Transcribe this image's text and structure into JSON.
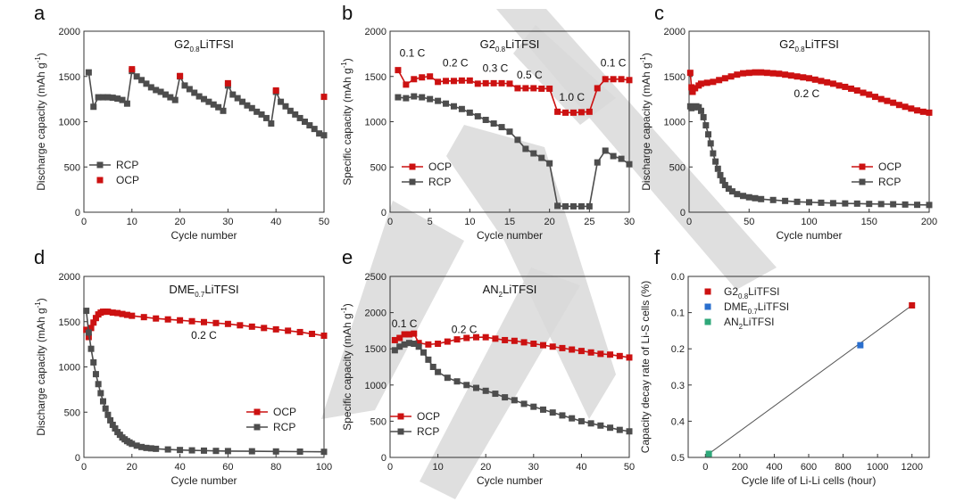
{
  "colors": {
    "red": "#cc1111",
    "gray": "#4d4d4d",
    "blue": "#2a6fce",
    "green": "#2fa87a"
  },
  "chart_data": [
    {
      "id": "a",
      "type": "scatter",
      "panel_label": "a",
      "title": "G2",
      "title_sub": "0.8",
      "title_tail": "LiTFSI",
      "xlabel": "Cycle number",
      "ylabel": "Discharge capacity (mAh g",
      "ylabel_sup": "-1",
      "ylabel_tail": ")",
      "xlim": [
        0,
        50
      ],
      "ylim": [
        0,
        2000
      ],
      "xticks": [
        0,
        10,
        20,
        30,
        40,
        50
      ],
      "yticks": [
        0,
        500,
        1000,
        1500,
        2000
      ],
      "legend": {
        "position": "center-left",
        "entries": [
          {
            "name": "RCP",
            "color": "#4d4d4d",
            "line": true
          },
          {
            "name": "OCP",
            "color": "#cc1111",
            "line": false
          }
        ]
      },
      "series": [
        {
          "name": "RCP",
          "color": "#4d4d4d",
          "line": true,
          "x": [
            1,
            2,
            3,
            4,
            5,
            6,
            7,
            8,
            9,
            10,
            11,
            12,
            13,
            14,
            15,
            16,
            17,
            18,
            19,
            20,
            21,
            22,
            23,
            24,
            25,
            26,
            27,
            28,
            29,
            30,
            31,
            32,
            33,
            34,
            35,
            36,
            37,
            38,
            39,
            40,
            41,
            42,
            43,
            44,
            45,
            46,
            47,
            48,
            49,
            50
          ],
          "y": [
            1545,
            1165,
            1270,
            1270,
            1270,
            1265,
            1255,
            1240,
            1200,
            1560,
            1500,
            1460,
            1420,
            1380,
            1350,
            1330,
            1300,
            1270,
            1240,
            1500,
            1400,
            1360,
            1320,
            1280,
            1250,
            1220,
            1190,
            1160,
            1120,
            1400,
            1300,
            1260,
            1220,
            1180,
            1150,
            1110,
            1080,
            1040,
            980,
            1330,
            1220,
            1170,
            1120,
            1080,
            1040,
            1000,
            960,
            920,
            870,
            850
          ]
        },
        {
          "name": "OCP",
          "color": "#cc1111",
          "line": false,
          "x": [
            10,
            20,
            30,
            40,
            50
          ],
          "y": [
            1580,
            1505,
            1425,
            1345,
            1275
          ]
        }
      ]
    },
    {
      "id": "b",
      "type": "line",
      "panel_label": "b",
      "title": "G2",
      "title_sub": "0.8",
      "title_tail": "LiTFSI",
      "xlabel": "Cycle number",
      "ylabel": "Specific capacity (mAh g",
      "ylabel_sup": "-1",
      "ylabel_tail": ")",
      "xlim": [
        0,
        30
      ],
      "ylim": [
        0,
        2000
      ],
      "xticks": [
        0,
        5,
        10,
        15,
        20,
        25,
        30
      ],
      "yticks": [
        0,
        500,
        1000,
        1500,
        2000
      ],
      "annotations": [
        {
          "text": "0.1 C",
          "x": 2.8,
          "y": 1720
        },
        {
          "text": "0.2 C",
          "x": 8.2,
          "y": 1610
        },
        {
          "text": "0.3 C",
          "x": 13.2,
          "y": 1550
        },
        {
          "text": "0.5 C",
          "x": 17.5,
          "y": 1480
        },
        {
          "text": "1.0 C",
          "x": 22.8,
          "y": 1230
        },
        {
          "text": "0.1 C",
          "x": 28,
          "y": 1610
        }
      ],
      "legend": {
        "position": "lower-center",
        "entries": [
          {
            "name": "OCP",
            "color": "#cc1111",
            "line": true
          },
          {
            "name": "RCP",
            "color": "#4d4d4d",
            "line": true
          }
        ]
      },
      "series": [
        {
          "name": "OCP",
          "color": "#cc1111",
          "line": true,
          "x": [
            1,
            2,
            3,
            4,
            5,
            6,
            7,
            8,
            9,
            10,
            11,
            12,
            13,
            14,
            15,
            16,
            17,
            18,
            19,
            20,
            21,
            22,
            23,
            24,
            25,
            26,
            27,
            28,
            29,
            30
          ],
          "y": [
            1570,
            1410,
            1470,
            1490,
            1500,
            1440,
            1450,
            1450,
            1455,
            1455,
            1420,
            1425,
            1425,
            1425,
            1420,
            1370,
            1370,
            1370,
            1365,
            1365,
            1110,
            1100,
            1100,
            1105,
            1110,
            1370,
            1470,
            1470,
            1470,
            1460
          ]
        },
        {
          "name": "RCP",
          "color": "#4d4d4d",
          "line": true,
          "x": [
            1,
            2,
            3,
            4,
            5,
            6,
            7,
            8,
            9,
            10,
            11,
            12,
            13,
            14,
            15,
            16,
            17,
            18,
            19,
            20,
            21,
            22,
            23,
            24,
            25,
            26,
            27,
            28,
            29,
            30
          ],
          "y": [
            1270,
            1260,
            1280,
            1270,
            1250,
            1230,
            1200,
            1170,
            1140,
            1100,
            1060,
            1020,
            980,
            940,
            890,
            800,
            700,
            650,
            600,
            540,
            70,
            65,
            65,
            65,
            65,
            550,
            680,
            620,
            590,
            530
          ]
        }
      ]
    },
    {
      "id": "c",
      "type": "line",
      "panel_label": "c",
      "title": "G2",
      "title_sub": "0.8",
      "title_tail": "LiTFSI",
      "xlabel": "Cycle number",
      "ylabel": "Discharge capacity (mAh g",
      "ylabel_sup": "-1",
      "ylabel_tail": ")",
      "xlim": [
        0,
        200
      ],
      "ylim": [
        0,
        2000
      ],
      "xticks": [
        0,
        50,
        100,
        150,
        200
      ],
      "yticks": [
        0,
        500,
        1000,
        1500,
        2000
      ],
      "annotations": [
        {
          "text": "0.2 C",
          "x": 98,
          "y": 1270
        }
      ],
      "legend": {
        "position": "lower-right",
        "entries": [
          {
            "name": "OCP",
            "color": "#cc1111",
            "line": true
          },
          {
            "name": "RCP",
            "color": "#4d4d4d",
            "line": true
          }
        ]
      },
      "series": [
        {
          "name": "OCP",
          "color": "#cc1111",
          "line": true,
          "x": [
            1,
            2,
            3,
            5,
            8,
            10,
            15,
            20,
            25,
            30,
            35,
            40,
            45,
            50,
            55,
            60,
            65,
            70,
            75,
            80,
            85,
            90,
            95,
            100,
            105,
            110,
            115,
            120,
            125,
            130,
            135,
            140,
            145,
            150,
            155,
            160,
            165,
            170,
            175,
            180,
            185,
            190,
            195,
            200
          ],
          "y": [
            1540,
            1380,
            1330,
            1370,
            1400,
            1420,
            1430,
            1440,
            1460,
            1480,
            1500,
            1520,
            1535,
            1540,
            1545,
            1545,
            1540,
            1535,
            1530,
            1520,
            1510,
            1500,
            1490,
            1480,
            1465,
            1450,
            1435,
            1420,
            1400,
            1385,
            1365,
            1345,
            1320,
            1300,
            1275,
            1250,
            1230,
            1210,
            1185,
            1165,
            1145,
            1125,
            1110,
            1100
          ]
        },
        {
          "name": "RCP",
          "color": "#4d4d4d",
          "line": true,
          "x": [
            1,
            2,
            4,
            6,
            8,
            10,
            12,
            14,
            16,
            18,
            20,
            22,
            24,
            26,
            28,
            30,
            33,
            36,
            40,
            45,
            50,
            55,
            60,
            70,
            80,
            90,
            100,
            110,
            120,
            130,
            140,
            150,
            160,
            170,
            180,
            190,
            200
          ],
          "y": [
            1170,
            1150,
            1160,
            1170,
            1160,
            1120,
            1050,
            960,
            860,
            760,
            650,
            560,
            480,
            410,
            350,
            300,
            260,
            230,
            200,
            180,
            165,
            155,
            145,
            135,
            125,
            115,
            110,
            105,
            100,
            97,
            95,
            92,
            90,
            88,
            85,
            82,
            80
          ]
        }
      ]
    },
    {
      "id": "d",
      "type": "line",
      "panel_label": "d",
      "title": "DME",
      "title_sub": "0.7",
      "title_tail": "LiTFSI",
      "xlabel": "Cycle number",
      "ylabel": "Discharge capacity (mAh g",
      "ylabel_sup": "-1",
      "ylabel_tail": ")",
      "xlim": [
        0,
        100
      ],
      "ylim": [
        0,
        2000
      ],
      "xticks": [
        0,
        20,
        40,
        60,
        80,
        100
      ],
      "yticks": [
        0,
        500,
        1000,
        1500,
        2000
      ],
      "annotations": [
        {
          "text": "0.2 C",
          "x": 50,
          "y": 1310
        }
      ],
      "legend": {
        "position": "lower-right",
        "entries": [
          {
            "name": "OCP",
            "color": "#cc1111",
            "line": true
          },
          {
            "name": "RCP",
            "color": "#4d4d4d",
            "line": true
          }
        ]
      },
      "series": [
        {
          "name": "OCP",
          "color": "#cc1111",
          "line": true,
          "x": [
            1,
            2,
            3,
            4,
            5,
            6,
            7,
            8,
            9,
            10,
            12,
            14,
            16,
            18,
            20,
            25,
            30,
            35,
            40,
            45,
            50,
            55,
            60,
            65,
            70,
            75,
            80,
            85,
            90,
            95,
            100
          ],
          "y": [
            1410,
            1330,
            1430,
            1490,
            1540,
            1580,
            1600,
            1610,
            1610,
            1610,
            1600,
            1595,
            1585,
            1575,
            1565,
            1550,
            1535,
            1525,
            1515,
            1505,
            1495,
            1485,
            1475,
            1460,
            1445,
            1430,
            1415,
            1400,
            1385,
            1365,
            1345
          ]
        },
        {
          "name": "RCP",
          "color": "#4d4d4d",
          "line": true,
          "x": [
            1,
            2,
            3,
            4,
            5,
            6,
            7,
            8,
            9,
            10,
            11,
            12,
            13,
            14,
            15,
            16,
            17,
            18,
            19,
            20,
            22,
            24,
            26,
            28,
            30,
            35,
            40,
            45,
            50,
            55,
            60,
            70,
            80,
            90,
            100
          ],
          "y": [
            1620,
            1380,
            1200,
            1050,
            920,
            810,
            710,
            620,
            540,
            470,
            410,
            360,
            320,
            280,
            250,
            220,
            200,
            180,
            165,
            150,
            130,
            115,
            105,
            100,
            95,
            88,
            82,
            78,
            75,
            72,
            70,
            68,
            66,
            64,
            62
          ]
        }
      ]
    },
    {
      "id": "e",
      "type": "line",
      "panel_label": "e",
      "title": "AN",
      "title_sub": "2",
      "title_tail": "LiTFSI",
      "xlabel": "Cycle number",
      "ylabel": "Specific capacity (mAh g",
      "ylabel_sup": "-1",
      "ylabel_tail": ")",
      "xlim": [
        0,
        50
      ],
      "ylim": [
        0,
        2500
      ],
      "xticks": [
        0,
        10,
        20,
        30,
        40,
        50
      ],
      "yticks": [
        0,
        500,
        1000,
        1500,
        2000,
        2500
      ],
      "annotations": [
        {
          "text": "0.1 C",
          "x": 3,
          "y": 1800
        },
        {
          "text": "0.2 C",
          "x": 15.5,
          "y": 1720
        }
      ],
      "legend": {
        "position": "lower-left",
        "entries": [
          {
            "name": "OCP",
            "color": "#cc1111",
            "line": true
          },
          {
            "name": "RCP",
            "color": "#4d4d4d",
            "line": true
          }
        ]
      },
      "series": [
        {
          "name": "OCP",
          "color": "#cc1111",
          "line": true,
          "x": [
            1,
            2,
            3,
            4,
            5,
            6,
            8,
            10,
            12,
            14,
            16,
            18,
            20,
            22,
            24,
            26,
            28,
            30,
            32,
            34,
            36,
            38,
            40,
            42,
            44,
            46,
            48,
            50
          ],
          "y": [
            1620,
            1650,
            1700,
            1700,
            1710,
            1580,
            1560,
            1570,
            1600,
            1630,
            1650,
            1660,
            1660,
            1640,
            1620,
            1610,
            1590,
            1570,
            1550,
            1530,
            1510,
            1490,
            1470,
            1450,
            1430,
            1420,
            1400,
            1380
          ]
        },
        {
          "name": "RCP",
          "color": "#4d4d4d",
          "line": true,
          "x": [
            1,
            2,
            3,
            4,
            5,
            6,
            7,
            8,
            9,
            10,
            12,
            14,
            16,
            18,
            20,
            22,
            24,
            26,
            28,
            30,
            32,
            34,
            36,
            38,
            40,
            42,
            44,
            46,
            48,
            50
          ],
          "y": [
            1480,
            1530,
            1560,
            1580,
            1570,
            1530,
            1450,
            1350,
            1250,
            1180,
            1100,
            1050,
            1000,
            960,
            920,
            880,
            830,
            790,
            740,
            700,
            660,
            620,
            580,
            540,
            500,
            470,
            440,
            410,
            380,
            360
          ]
        }
      ]
    },
    {
      "id": "f",
      "type": "scatter",
      "panel_label": "f",
      "xlabel": "Cycle life of Li-Li cells (hour)",
      "ylabel": "Capacity decay rate of Li-S cells (%)",
      "xlim": [
        -100,
        1300
      ],
      "ylim": [
        0.0,
        0.5
      ],
      "y_inverted": true,
      "xticks": [
        0,
        200,
        400,
        600,
        800,
        1000,
        1200
      ],
      "yticks": [
        0.0,
        0.1,
        0.2,
        0.3,
        0.4,
        0.5
      ],
      "legend": {
        "position": "top-left",
        "entries": [
          {
            "name": "G2",
            "sub": "0.8",
            "tail": "LiTFSI",
            "color": "#cc1111"
          },
          {
            "name": "DME",
            "sub": "0.7",
            "tail": "LiTFSI",
            "color": "#2a6fce"
          },
          {
            "name": "AN",
            "sub": "2",
            "tail": "LiTFSI",
            "color": "#2fa87a"
          }
        ]
      },
      "fit_line": {
        "x": [
          20,
          1200
        ],
        "y": [
          0.49,
          0.08
        ]
      },
      "series": [
        {
          "name": "G2 0.8 LiTFSI",
          "color": "#cc1111",
          "x": [
            1200
          ],
          "y": [
            0.08
          ]
        },
        {
          "name": "DME 0.7 LiTFSI",
          "color": "#2a6fce",
          "x": [
            900
          ],
          "y": [
            0.19
          ]
        },
        {
          "name": "AN 2 LiTFSI",
          "color": "#2fa87a",
          "x": [
            20
          ],
          "y": [
            0.49
          ]
        }
      ]
    }
  ]
}
